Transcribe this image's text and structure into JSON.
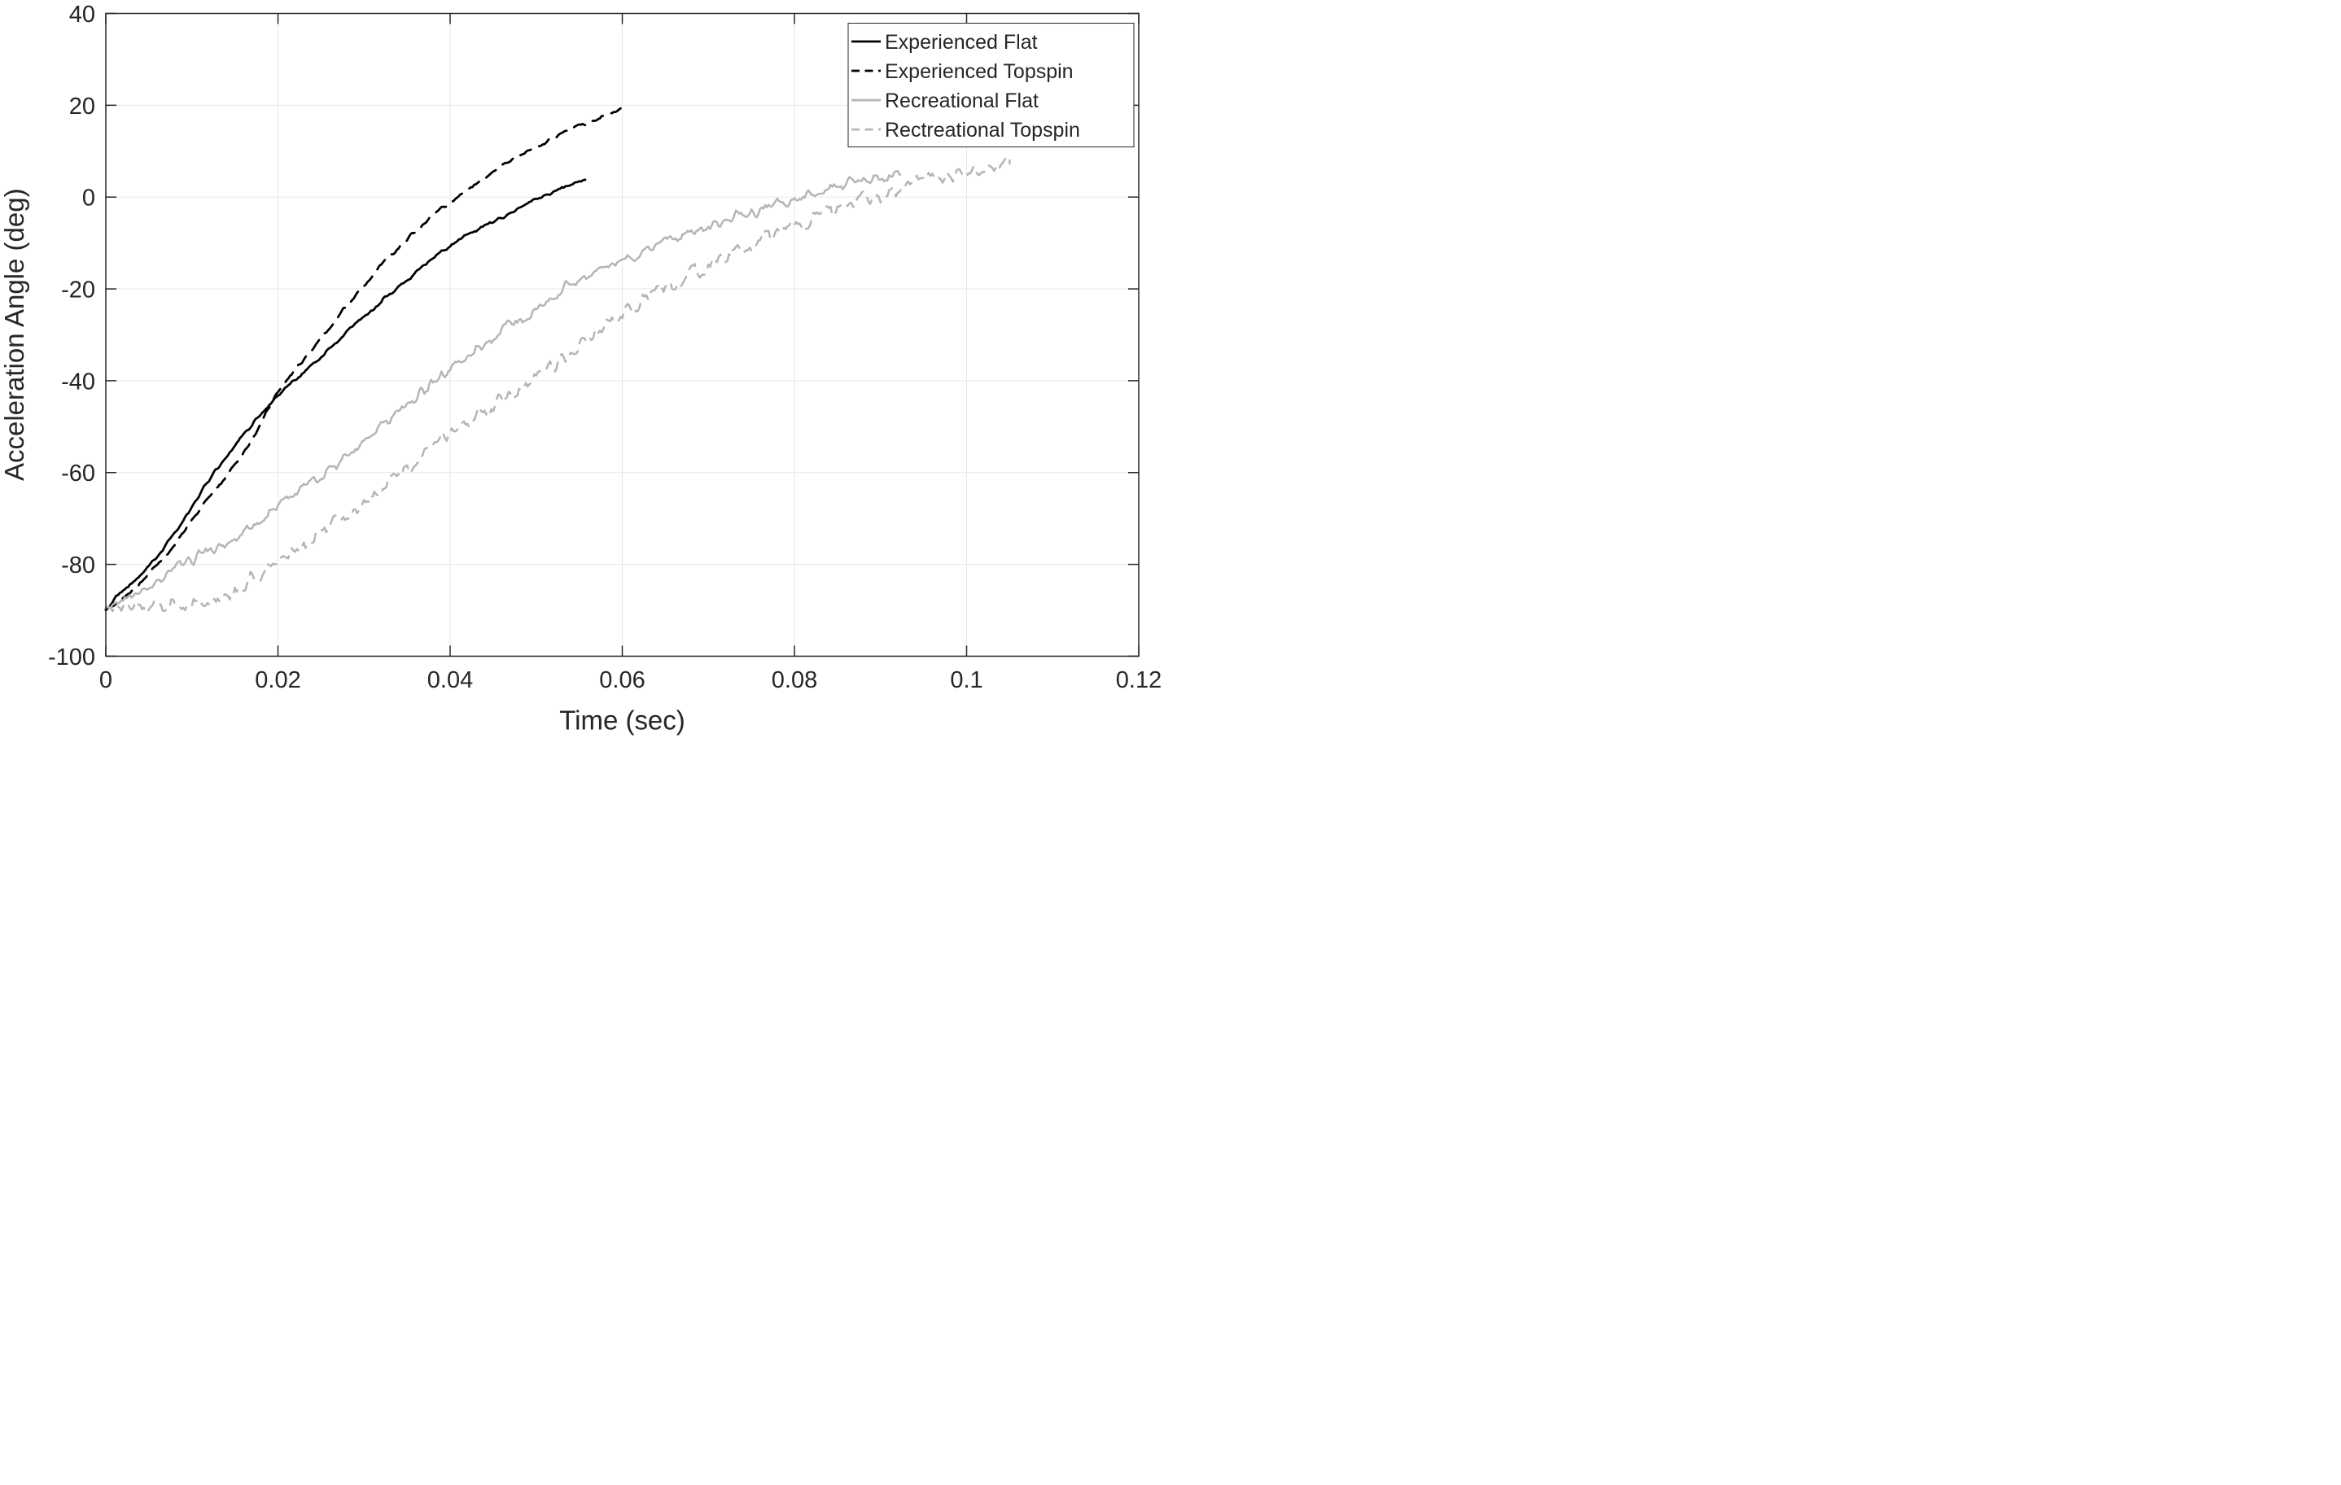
{
  "page": {
    "background": "#ffffff"
  },
  "axes": {
    "xlabel": "Time (sec)",
    "ylabel": "Acceleration Angle (deg)",
    "xlim": [
      0,
      0.12
    ],
    "ylim": [
      -100,
      40
    ],
    "x_ticks": [
      0,
      0.02,
      0.04,
      0.06,
      0.08,
      0.1,
      0.12
    ],
    "x_tick_labels": [
      "0",
      "0.02",
      "0.04",
      "0.06",
      "0.08",
      "0.1",
      "0.12"
    ],
    "y_ticks": [
      40,
      20,
      0,
      -20,
      -40,
      -60,
      -80,
      -100
    ],
    "y_tick_labels": [
      "40",
      "20",
      "0",
      "-20",
      "-40",
      "-60",
      "-80",
      "-100"
    ],
    "grid": true,
    "colors": {
      "grid": "#e7e7e7",
      "axis": "#262626",
      "text": "#262626"
    }
  },
  "legend": {
    "position": "northeast",
    "entries": [
      {
        "label": "Experienced Flat",
        "color": "#000000",
        "style": "solid"
      },
      {
        "label": "Experienced Topspin",
        "color": "#000000",
        "style": "dashed"
      },
      {
        "label": "Recreational Flat",
        "color": "#b5b5b5",
        "style": "solid"
      },
      {
        "label": "Rectreational Topspin",
        "color": "#b5b5b5",
        "style": "dashed"
      }
    ]
  },
  "chart_data": {
    "type": "line",
    "title": "",
    "xlabel": "Time (sec)",
    "ylabel": "Acceleration Angle (deg)",
    "xlim": [
      0,
      0.12
    ],
    "ylim": [
      -100,
      40
    ],
    "grid": true,
    "legend_position": "northeast",
    "series": [
      {
        "name": "Experienced Flat",
        "color": "#000000",
        "style": "solid",
        "noise_deg": 0.4,
        "seed": 7,
        "points": [
          [
            0,
            -89.5
          ],
          [
            0.0025,
            -85
          ],
          [
            0.0052,
            -80
          ],
          [
            0.008,
            -73
          ],
          [
            0.0105,
            -66
          ],
          [
            0.0126,
            -60
          ],
          [
            0.015,
            -54
          ],
          [
            0.018,
            -47.5
          ],
          [
            0.02,
            -43.5
          ],
          [
            0.023,
            -38
          ],
          [
            0.026,
            -33
          ],
          [
            0.0303,
            -25.5
          ],
          [
            0.034,
            -19.5
          ],
          [
            0.037,
            -15
          ],
          [
            0.0401,
            -10.5
          ],
          [
            0.043,
            -7.5
          ],
          [
            0.046,
            -4.5
          ],
          [
            0.049,
            -1.5
          ],
          [
            0.052,
            1
          ],
          [
            0.054,
            2.8
          ],
          [
            0.0557,
            4.3
          ]
        ]
      },
      {
        "name": "Experienced Topspin",
        "color": "#000000",
        "style": "dashed",
        "noise_deg": 0.4,
        "seed": 13,
        "points": [
          [
            0,
            -90
          ],
          [
            0.003,
            -85.5
          ],
          [
            0.0061,
            -80
          ],
          [
            0.009,
            -73
          ],
          [
            0.0117,
            -66
          ],
          [
            0.0143,
            -60
          ],
          [
            0.017,
            -52.5
          ],
          [
            0.0185,
            -47.5
          ],
          [
            0.02,
            -42.5
          ],
          [
            0.0235,
            -34
          ],
          [
            0.027,
            -26
          ],
          [
            0.0303,
            -18.5
          ],
          [
            0.034,
            -11
          ],
          [
            0.038,
            -4
          ],
          [
            0.041,
            0
          ],
          [
            0.044,
            4
          ],
          [
            0.047,
            8
          ],
          [
            0.05,
            11
          ],
          [
            0.053,
            13.8
          ],
          [
            0.056,
            16.2
          ],
          [
            0.0598,
            19.3
          ]
        ]
      },
      {
        "name": "Recreational Flat",
        "color": "#b5b5b5",
        "style": "solid",
        "noise_deg": 1.2,
        "seed": 29,
        "points": [
          [
            0,
            -89
          ],
          [
            0.003,
            -86.5
          ],
          [
            0.006,
            -83.5
          ],
          [
            0.0089,
            -80
          ],
          [
            0.0123,
            -77
          ],
          [
            0.016,
            -72.5
          ],
          [
            0.0195,
            -68
          ],
          [
            0.0227,
            -63.7
          ],
          [
            0.0254,
            -60
          ],
          [
            0.029,
            -54.5
          ],
          [
            0.033,
            -48
          ],
          [
            0.0385,
            -40
          ],
          [
            0.043,
            -33.5
          ],
          [
            0.047,
            -28
          ],
          [
            0.051,
            -23
          ],
          [
            0.054,
            -19
          ],
          [
            0.0586,
            -15.3
          ],
          [
            0.063,
            -11.5
          ],
          [
            0.068,
            -7.5
          ],
          [
            0.073,
            -4.5
          ],
          [
            0.077,
            -2
          ],
          [
            0.0806,
            0
          ],
          [
            0.0846,
            2.2
          ],
          [
            0.088,
            3.6
          ],
          [
            0.0905,
            4.6
          ],
          [
            0.0915,
            4.2
          ],
          [
            0.0923,
            5
          ]
        ]
      },
      {
        "name": "Rectreational Topspin",
        "color": "#b5b5b5",
        "style": "dashed",
        "noise_deg": 1.6,
        "seed": 41,
        "points": [
          [
            0,
            -90
          ],
          [
            0.004,
            -89.5
          ],
          [
            0.008,
            -89
          ],
          [
            0.011,
            -88.5
          ],
          [
            0.014,
            -86.5
          ],
          [
            0.017,
            -83
          ],
          [
            0.02,
            -79.2
          ],
          [
            0.0227,
            -76
          ],
          [
            0.026,
            -71.5
          ],
          [
            0.03,
            -66
          ],
          [
            0.0346,
            -60
          ],
          [
            0.04,
            -51.5
          ],
          [
            0.045,
            -45.5
          ],
          [
            0.05,
            -39.5
          ],
          [
            0.055,
            -32.5
          ],
          [
            0.0586,
            -27
          ],
          [
            0.062,
            -23
          ],
          [
            0.065,
            -20
          ],
          [
            0.07,
            -15
          ],
          [
            0.0749,
            -10.3
          ],
          [
            0.08,
            -6.5
          ],
          [
            0.084,
            -3.5
          ],
          [
            0.087,
            -1
          ],
          [
            0.09,
            0.8
          ],
          [
            0.0935,
            2.8
          ],
          [
            0.0965,
            4.4
          ],
          [
            0.0994,
            5.5
          ],
          [
            0.1024,
            6.8
          ],
          [
            0.105,
            7
          ]
        ]
      }
    ]
  }
}
